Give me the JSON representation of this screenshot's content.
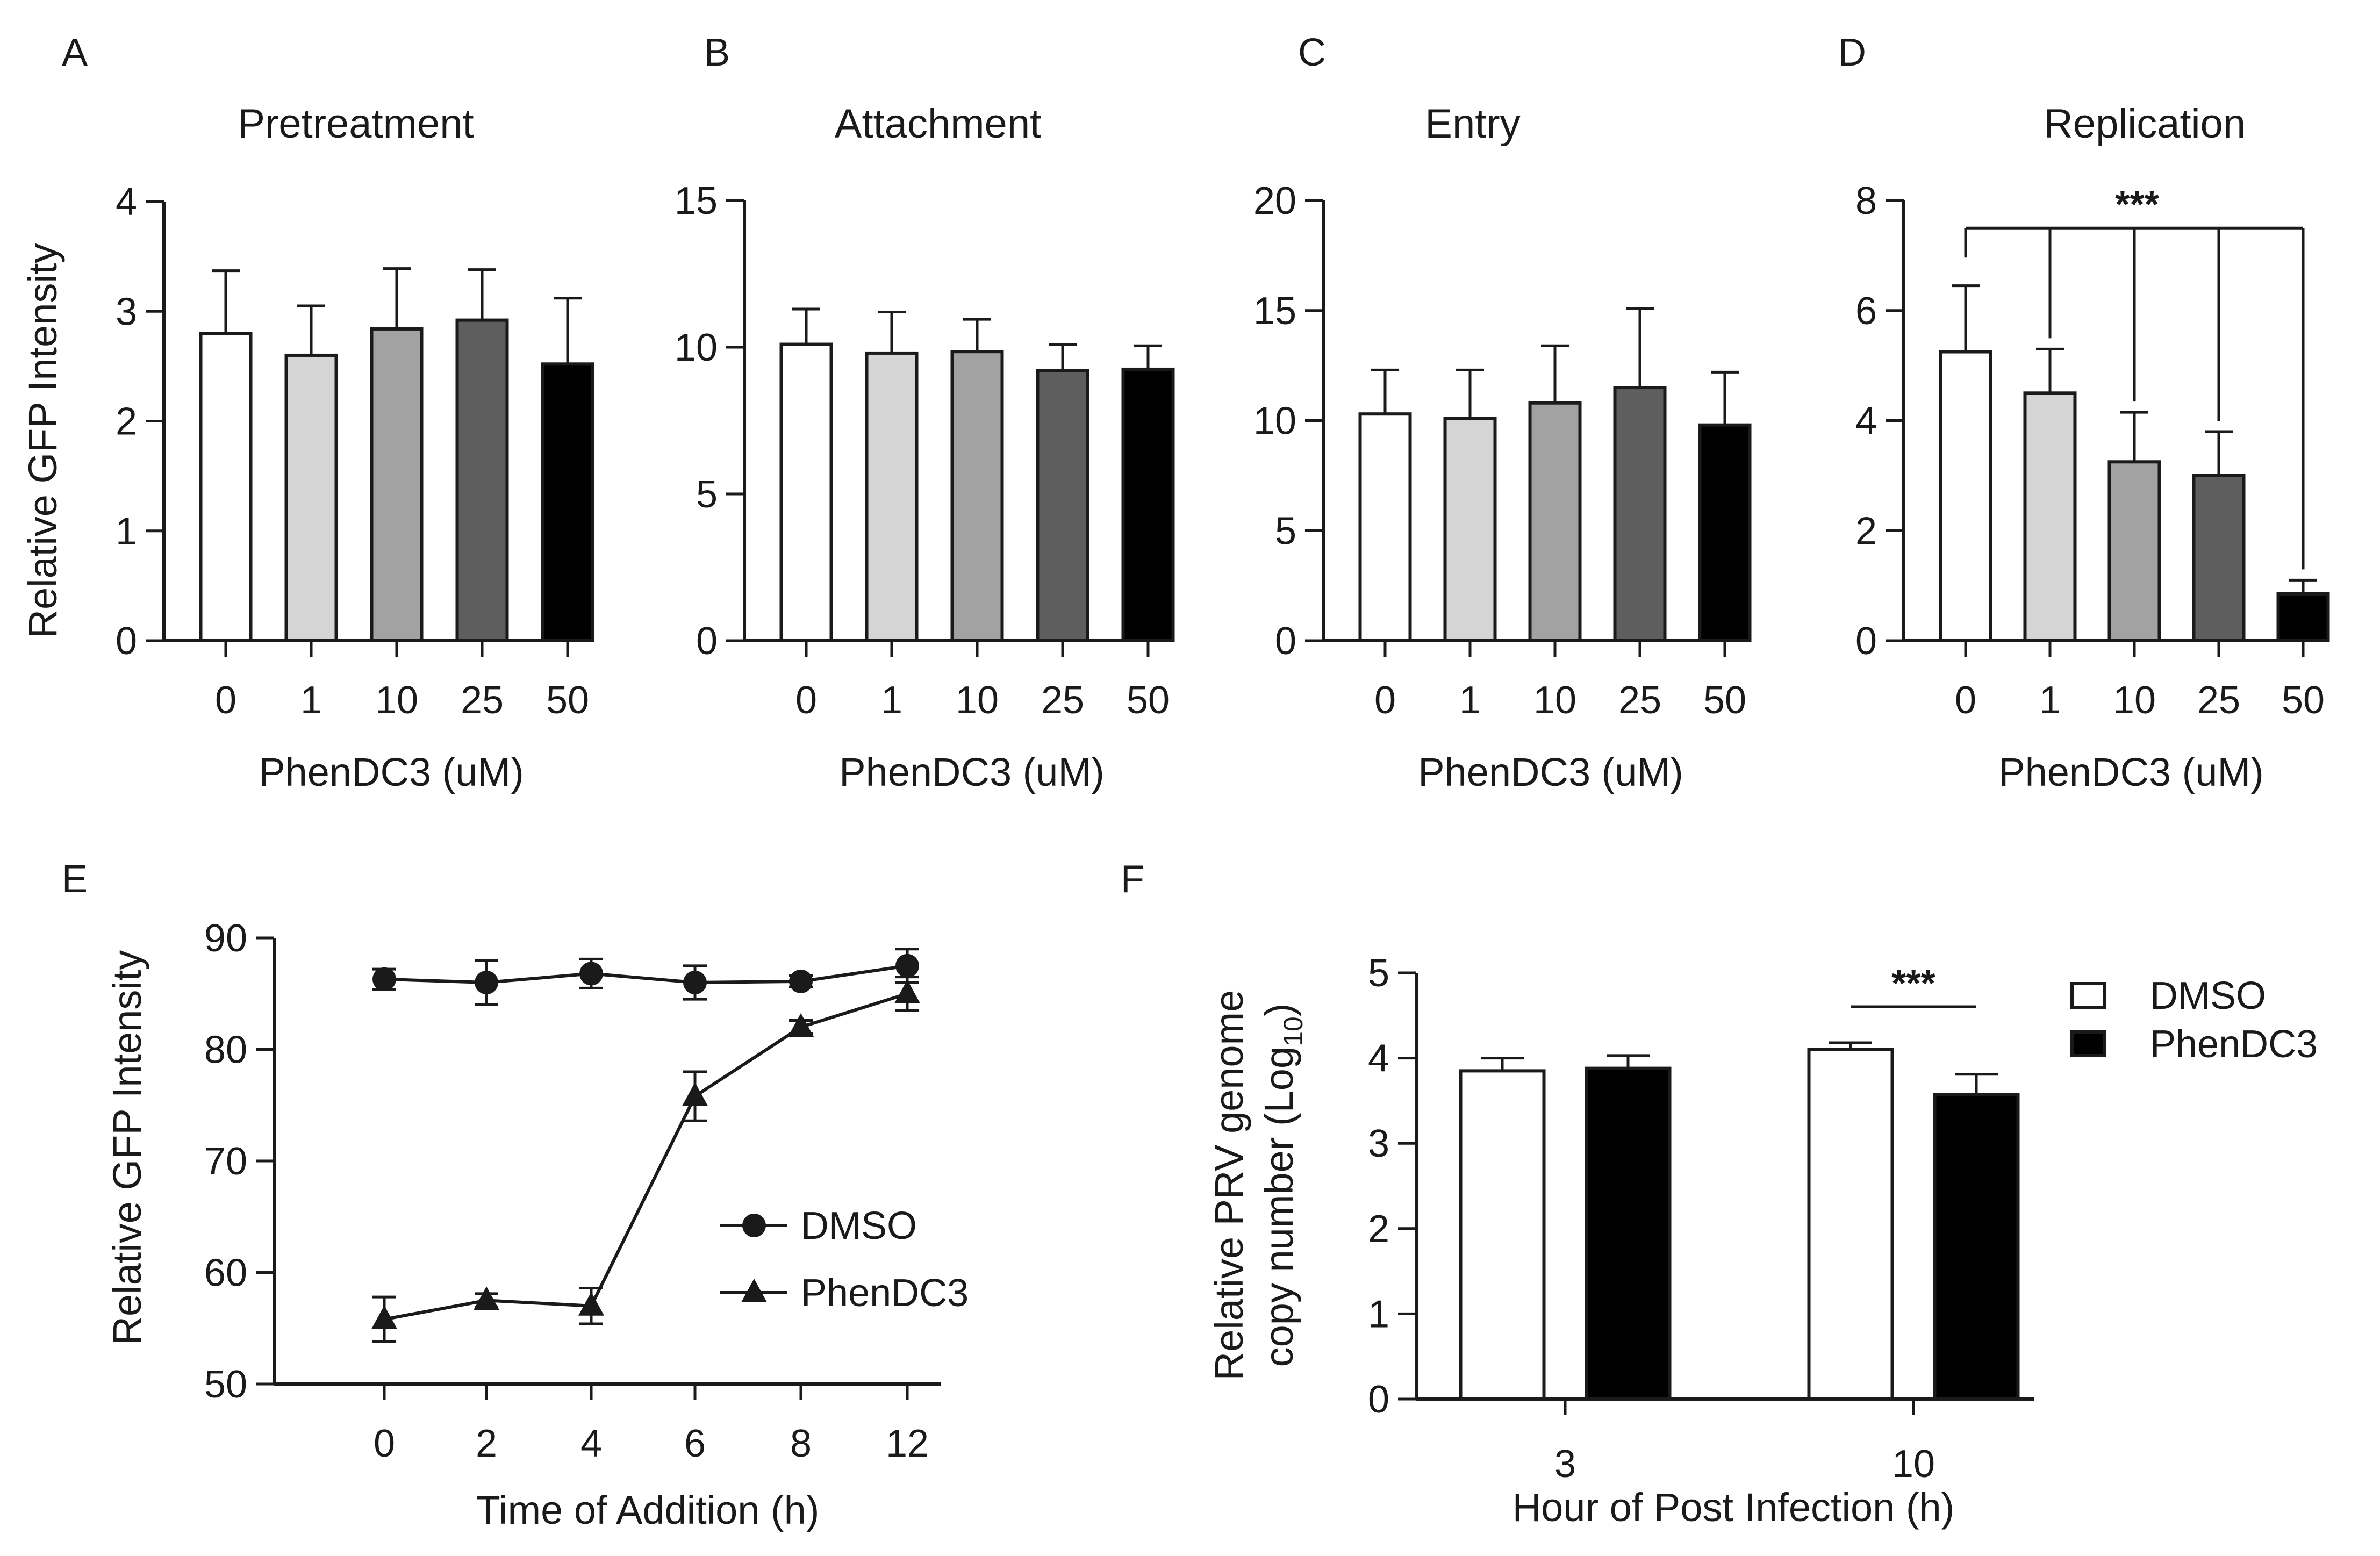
{
  "chart_data": [
    {
      "panel": "A",
      "type": "bar",
      "title": "Pretreatment",
      "xlabel": "PhenDC3 (uM)",
      "ylabel": "Relative GFP Intensity",
      "ylim": [
        0,
        4
      ],
      "yticks": [
        "0",
        "1",
        "2",
        "3",
        "4"
      ],
      "categories": [
        "0",
        "1",
        "10",
        "25",
        "50"
      ],
      "values": [
        2.8,
        2.6,
        2.84,
        2.92,
        2.52
      ],
      "errors": [
        0.57,
        0.45,
        0.55,
        0.46,
        0.6
      ],
      "colors": [
        "#ffffff",
        "#d5d5d5",
        "#a2a2a2",
        "#5e5e5e",
        "#000000"
      ]
    },
    {
      "panel": "B",
      "type": "bar",
      "title": "Attachment",
      "xlabel": "PhenDC3 (uM)",
      "ylabel": "",
      "ylim": [
        0,
        15
      ],
      "yticks": [
        "0",
        "5",
        "10",
        "15"
      ],
      "categories": [
        "0",
        "1",
        "10",
        "25",
        "50"
      ],
      "values": [
        10.1,
        9.8,
        9.85,
        9.2,
        9.25
      ],
      "errors": [
        1.2,
        1.4,
        1.1,
        0.9,
        0.8
      ],
      "colors": [
        "#ffffff",
        "#d5d5d5",
        "#a2a2a2",
        "#5e5e5e",
        "#000000"
      ]
    },
    {
      "panel": "C",
      "type": "bar",
      "title": "Entry",
      "xlabel": "PhenDC3 (uM)",
      "ylabel": "",
      "ylim": [
        0,
        20
      ],
      "yticks": [
        "0",
        "5",
        "10",
        "15",
        "20"
      ],
      "categories": [
        "0",
        "1",
        "10",
        "25",
        "50"
      ],
      "values": [
        10.3,
        10.1,
        10.8,
        11.5,
        9.8
      ],
      "errors": [
        2.0,
        2.2,
        2.6,
        3.6,
        2.4
      ],
      "colors": [
        "#ffffff",
        "#d5d5d5",
        "#a2a2a2",
        "#5e5e5e",
        "#000000"
      ]
    },
    {
      "panel": "D",
      "type": "bar",
      "title": "Replication",
      "xlabel": "PhenDC3 (uM)",
      "ylabel": "",
      "ylim": [
        0,
        8
      ],
      "yticks": [
        "0",
        "2",
        "4",
        "6",
        "8"
      ],
      "categories": [
        "0",
        "1",
        "10",
        "25",
        "50"
      ],
      "values": [
        5.25,
        4.5,
        3.25,
        3.0,
        0.85
      ],
      "errors": [
        1.2,
        0.8,
        0.9,
        0.8,
        0.25
      ],
      "colors": [
        "#ffffff",
        "#d5d5d5",
        "#a2a2a2",
        "#5e5e5e",
        "#000000"
      ],
      "significance": "***"
    },
    {
      "panel": "E",
      "type": "line",
      "title": "",
      "xlabel": "Time of Addition (h)",
      "ylabel": "Relative GFP Intensity",
      "ylim": [
        50,
        90
      ],
      "yticks": [
        "50",
        "60",
        "70",
        "80",
        "90"
      ],
      "categories": [
        "0",
        "2",
        "4",
        "6",
        "8",
        "12"
      ],
      "series": [
        {
          "name": "DMSO",
          "marker": "circle",
          "values": [
            86.3,
            86.0,
            86.8,
            86.0,
            86.1,
            87.5
          ],
          "errors": [
            0.9,
            2.0,
            1.3,
            1.5,
            0.5,
            1.5
          ]
        },
        {
          "name": "PhenDC3",
          "marker": "triangle",
          "values": [
            55.8,
            57.5,
            57.0,
            75.8,
            82.0,
            85.0
          ],
          "errors": [
            2.0,
            0.6,
            1.6,
            2.2,
            0.6,
            1.5
          ]
        }
      ]
    },
    {
      "panel": "F",
      "type": "bar",
      "title": "",
      "xlabel": "Hour of Post Infection (h)",
      "ylabel_line1": "Relative PRV genome",
      "ylabel_line2": "copy number (Log",
      "ylabel_sub": "10",
      "ylabel_close": ")",
      "ylim": [
        0,
        5
      ],
      "yticks": [
        "0",
        "1",
        "2",
        "3",
        "4",
        "5"
      ],
      "categories": [
        "3",
        "10"
      ],
      "series": [
        {
          "name": "DMSO",
          "color": "#ffffff",
          "values": [
            3.85,
            4.1
          ],
          "errors": [
            0.15,
            0.08
          ]
        },
        {
          "name": "PhenDC3",
          "color": "#000000",
          "values": [
            3.88,
            3.57
          ],
          "errors": [
            0.15,
            0.24
          ]
        }
      ],
      "significance": "***"
    }
  ]
}
